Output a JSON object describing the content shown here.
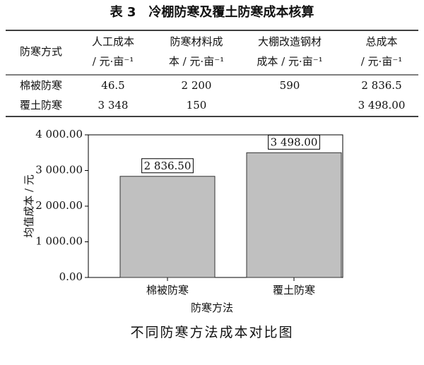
{
  "table": {
    "title": "表 3　冷棚防寒及覆土防寒成本核算",
    "header": [
      [
        "防寒方式"
      ],
      [
        "人工成本",
        "/ 元·亩⁻¹"
      ],
      [
        "防寒材料成",
        "本 / 元·亩⁻¹"
      ],
      [
        "大棚改造钢材",
        "成本 / 元·亩⁻¹"
      ],
      [
        "总成本",
        "/ 元·亩⁻¹"
      ]
    ],
    "rows": [
      [
        "棉被防寒",
        "46.5",
        "2 200",
        "590",
        "2 836.5"
      ],
      [
        "覆土防寒",
        "3 348",
        "150",
        null,
        "3 498.00"
      ]
    ]
  },
  "chart_data": {
    "type": "bar",
    "title": "不同防寒方法成本对比图",
    "x_label": "防寒方法",
    "y_label": "均值成本 / 元",
    "categories": [
      "棉被防寒",
      "覆土防寒"
    ],
    "values": [
      2836.5,
      3498
    ],
    "value_labels": [
      "2 836.50",
      "3 498.00"
    ],
    "color": "#c0c0c0",
    "ylim": [
      0,
      4000
    ],
    "yticks": [
      {
        "value": 0,
        "label": "0.00"
      },
      {
        "value": 1000,
        "label": "1 000.00"
      },
      {
        "value": 2000,
        "label": "2 000.00"
      },
      {
        "value": 3000,
        "label": "3 000.00"
      },
      {
        "value": 4000,
        "label": "4 000.00"
      }
    ]
  }
}
